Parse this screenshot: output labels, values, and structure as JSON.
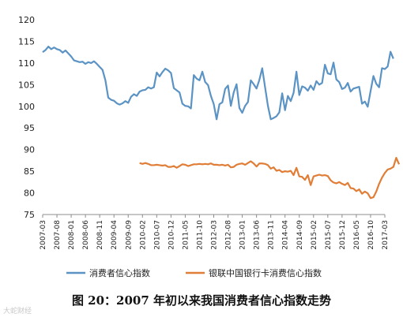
{
  "caption": "图 20：2007 年初以来我国消费者信心指数走势",
  "watermark": "大蛇财经",
  "colors": {
    "consumer": "#5a93c4",
    "bankcard": "#e07d36",
    "axis": "#8c8c8c"
  },
  "chart_data": {
    "type": "line",
    "ylim": [
      75,
      120
    ],
    "yticks": [
      75,
      80,
      85,
      90,
      95,
      100,
      105,
      110,
      115,
      120
    ],
    "x_tick_labels": [
      "2007-03",
      "2007-08",
      "2008-01",
      "2008-06",
      "2008-11",
      "2009-04",
      "2009-09",
      "2010-02",
      "2010-07",
      "2010-12",
      "2011-05",
      "2011-10",
      "2012-03",
      "2012-08",
      "2013-01",
      "2013-06",
      "2013-11",
      "2014-04",
      "2014-09",
      "2015-02",
      "2015-07",
      "2015-12",
      "2016-05",
      "2016-10",
      "2017-03"
    ],
    "legend": {
      "position": "bottom"
    },
    "series": [
      {
        "name": "消费者信心指数",
        "start": "2007-03",
        "values": [
          112.5,
          113.0,
          113.8,
          113.2,
          113.6,
          113.2,
          113.0,
          112.4,
          112.9,
          112.2,
          111.5,
          110.6,
          110.4,
          110.2,
          110.3,
          109.8,
          110.2,
          110.0,
          110.4,
          109.8,
          109.1,
          108.4,
          106.0,
          102.0,
          101.5,
          101.3,
          100.7,
          100.4,
          100.7,
          101.2,
          100.8,
          102.2,
          102.8,
          102.4,
          103.4,
          103.7,
          103.8,
          104.4,
          104.1,
          104.4,
          107.8,
          106.9,
          107.9,
          108.7,
          108.3,
          107.7,
          104.2,
          103.7,
          103.2,
          100.6,
          100.1,
          100.0,
          99.5,
          107.2,
          106.4,
          106.0,
          108.0,
          105.6,
          104.9,
          102.4,
          100.5,
          97.0,
          100.5,
          100.9,
          104.0,
          104.8,
          100.1,
          103.2,
          105.1,
          99.6,
          98.5,
          100.1,
          101.0,
          106.0,
          105.1,
          104.1,
          106.1,
          108.8,
          104.4,
          100.1,
          97.0,
          97.3,
          97.7,
          98.6,
          103.0,
          99.1,
          102.4,
          101.2,
          103.1,
          108.0,
          102.6,
          104.6,
          104.3,
          103.6,
          104.8,
          103.8,
          105.8,
          105.0,
          105.4,
          109.6,
          107.6,
          107.4,
          110.1,
          106.2,
          105.6,
          104.0,
          104.3,
          105.4,
          103.4,
          104.1,
          104.3,
          104.5,
          100.6,
          101.1,
          99.9,
          103.5,
          107.0,
          105.2,
          104.4,
          108.8,
          108.6,
          109.2,
          112.6,
          111.0
        ]
      },
      {
        "name": "银联中国银行卡消费信心指数",
        "start": "2010-01",
        "values": [
          86.9,
          86.7,
          86.9,
          86.7,
          86.4,
          86.4,
          86.5,
          86.4,
          86.3,
          86.4,
          86.0,
          86.0,
          86.2,
          85.8,
          86.2,
          86.6,
          86.5,
          86.2,
          86.4,
          86.6,
          86.6,
          86.7,
          86.6,
          86.7,
          86.6,
          86.8,
          86.5,
          86.5,
          86.4,
          86.5,
          86.3,
          86.5,
          85.9,
          86.0,
          86.5,
          86.7,
          86.8,
          86.5,
          86.9,
          87.3,
          86.8,
          86.1,
          86.8,
          86.8,
          86.7,
          86.4,
          85.6,
          85.9,
          85.1,
          85.3,
          84.8,
          85.0,
          84.9,
          85.1,
          84.1,
          85.8,
          83.8,
          83.7,
          83.0,
          84.1,
          81.8,
          83.8,
          84.0,
          84.2,
          84.0,
          84.1,
          83.9,
          82.9,
          82.4,
          82.2,
          82.5,
          82.1,
          81.8,
          82.3,
          81.1,
          81.0,
          80.4,
          80.8,
          79.8,
          80.3,
          79.9,
          78.8,
          79.0,
          80.3,
          82.1,
          83.5,
          84.6,
          85.4,
          85.6,
          86.0,
          88.1,
          86.6
        ]
      }
    ]
  }
}
